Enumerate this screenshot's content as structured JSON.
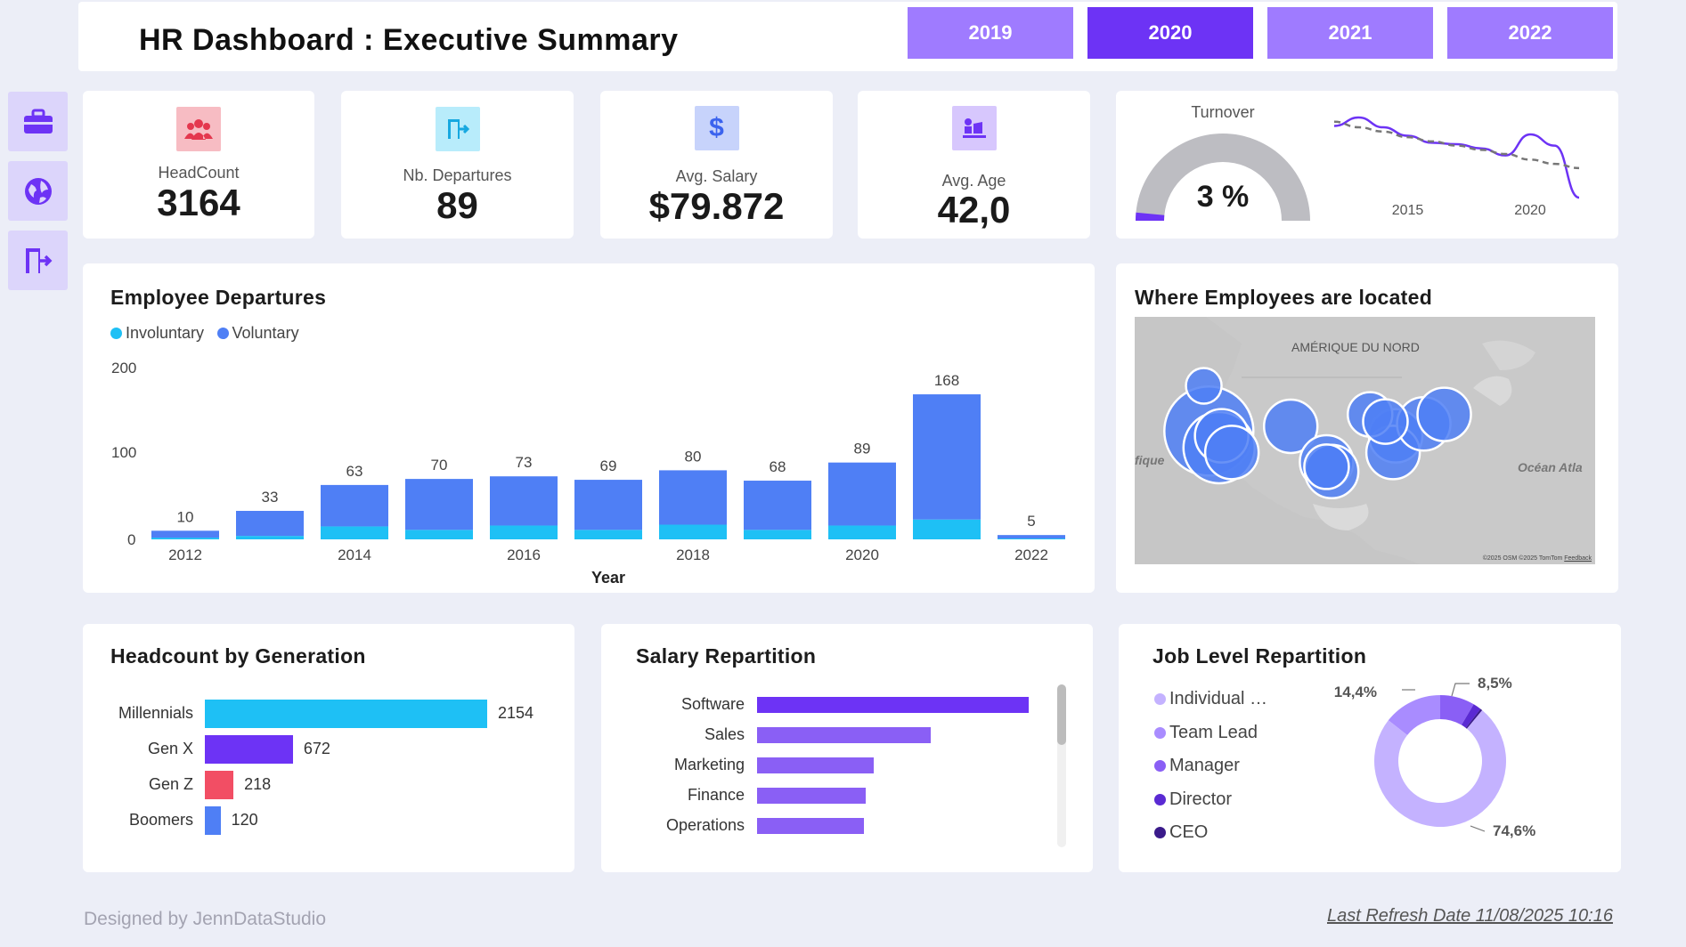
{
  "header": {
    "title": "HR Dashboard : Executive Summary",
    "years": [
      {
        "label": "2019",
        "color": "#9f7bff"
      },
      {
        "label": "2020",
        "color": "#6d33f5"
      },
      {
        "label": "2021",
        "color": "#9f7bff"
      },
      {
        "label": "2022",
        "color": "#9f7bff"
      }
    ],
    "selected_year": "2020"
  },
  "sidebar": {
    "items": [
      {
        "icon": "briefcase-icon"
      },
      {
        "icon": "globe-icon"
      },
      {
        "icon": "exit-door-icon"
      }
    ]
  },
  "kpis": {
    "headcount": {
      "label": "HeadCount",
      "value": "3164",
      "icon": "people-icon"
    },
    "departures": {
      "label": "Nb. Departures",
      "value": "89",
      "icon": "exit-door-icon"
    },
    "salary": {
      "label": "Avg. Salary",
      "value": "$79.872",
      "icon": "dollar-icon"
    },
    "age": {
      "label": "Avg. Age",
      "value": "42,0",
      "icon": "person-at-desk-icon"
    }
  },
  "turnover": {
    "label": "Turnover",
    "value_text": "3 %",
    "gauge_fraction": 0.03,
    "sparkline_ticks": [
      "2015",
      "2020"
    ]
  },
  "departures_chart": {
    "title": "Employee Departures",
    "legend": [
      {
        "name": "Involuntary",
        "color": "#1ec0f5"
      },
      {
        "name": "Voluntary",
        "color": "#4f7ff5"
      }
    ],
    "xlabel": "Year",
    "y_ticks": [
      "200",
      "100",
      "0"
    ]
  },
  "map": {
    "title": "Where Employees are located",
    "continent_label": "AMÉRIQUE DU NORD",
    "ocean_left": "fique",
    "ocean_right": "Océan Atla",
    "attribution": "©2025 OSM ©2025 TomTom",
    "feedback": "Feedback"
  },
  "generation": {
    "title": "Headcount by Generation"
  },
  "salary": {
    "title": "Salary Repartition"
  },
  "job_level": {
    "title": "Job Level Repartition",
    "legend": [
      {
        "name": "Individual …",
        "color": "#c4b2ff"
      },
      {
        "name": "Team Lead",
        "color": "#a98cff"
      },
      {
        "name": "Manager",
        "color": "#8a5ff5"
      },
      {
        "name": "Director",
        "color": "#5a2ad3"
      },
      {
        "name": "CEO",
        "color": "#3a1a8a"
      }
    ]
  },
  "chart_data": [
    {
      "type": "bar",
      "title": "Employee Departures",
      "xlabel": "Year",
      "ylabel": "",
      "ylim": [
        0,
        200
      ],
      "categories": [
        "2012",
        "2013",
        "2014",
        "2015",
        "2016",
        "2017",
        "2018",
        "2019",
        "2020",
        "2021",
        "2022"
      ],
      "x_tick_labels": [
        "2012",
        "",
        "2014",
        "",
        "2016",
        "",
        "2018",
        "",
        "2020",
        "",
        "2022"
      ],
      "totals": [
        10,
        33,
        63,
        70,
        73,
        69,
        80,
        68,
        89,
        168,
        5
      ],
      "series": [
        {
          "name": "Involuntary",
          "values": [
            2,
            4,
            15,
            11,
            16,
            11,
            17,
            11,
            16,
            23,
            1
          ]
        },
        {
          "name": "Voluntary",
          "values": [
            8,
            29,
            48,
            59,
            57,
            58,
            63,
            57,
            73,
            145,
            4
          ]
        }
      ],
      "stacked": true,
      "grid": false,
      "legend": "top-left"
    },
    {
      "type": "line",
      "title": "Turnover",
      "x_tick_labels": [
        "2015",
        "2020"
      ],
      "x": [
        2012,
        2013,
        2014,
        2015,
        2016,
        2017,
        2018,
        2019,
        2020,
        2021,
        2022
      ],
      "series": [
        {
          "name": "",
          "values": [
            3.6,
            4.2,
            3.5,
            2.9,
            2.4,
            2.3,
            2.0,
            1.5,
            3.0,
            2.2,
            -1.5
          ],
          "color": "#6d33f5"
        },
        {
          "name": "",
          "values": [
            3.9,
            3.5,
            3.2,
            2.8,
            2.5,
            2.2,
            1.9,
            1.6,
            1.2,
            0.9,
            0.6
          ],
          "color": "#777777",
          "dashed": true
        }
      ]
    },
    {
      "type": "bar",
      "orientation": "horizontal",
      "title": "Headcount by Generation",
      "categories": [
        "Millennials",
        "Gen X",
        "Gen Z",
        "Boomers"
      ],
      "values": [
        2154,
        672,
        218,
        120
      ],
      "colors": [
        "#1ec0f5",
        "#6d33f5",
        "#f24e64",
        "#4f7ff5"
      ]
    },
    {
      "type": "bar",
      "orientation": "horizontal",
      "title": "Salary Repartition",
      "categories": [
        "Software",
        "Sales",
        "Marketing",
        "Finance",
        "Operations"
      ],
      "values": [
        100,
        64,
        43,
        40,
        39.5
      ],
      "colors": [
        "#6d33f5",
        "#8a5ff5",
        "#8a5ff5",
        "#8a5ff5",
        "#8a5ff5"
      ]
    },
    {
      "type": "pie",
      "donut": true,
      "title": "Job Level Repartition",
      "categories": [
        "Individual …",
        "Team Lead",
        "Manager",
        "Director",
        "CEO"
      ],
      "values": [
        74.6,
        14.4,
        8.5,
        2.0,
        0.5
      ],
      "labels": [
        "74,6%",
        "14,4%",
        "8,5%",
        "",
        ""
      ],
      "colors": [
        "#c4b2ff",
        "#a98cff",
        "#8a5ff5",
        "#5a2ad3",
        "#3a1a8a"
      ]
    }
  ],
  "map_points": [
    {
      "lon": -121.5,
      "lat": 47.5,
      "size": 1
    },
    {
      "lon": -120.5,
      "lat": 38.0,
      "size": 4
    },
    {
      "lon": -118.0,
      "lat": 37.0,
      "size": 2
    },
    {
      "lon": -118.5,
      "lat": 34.5,
      "size": 3
    },
    {
      "lon": -116.0,
      "lat": 33.5,
      "size": 2
    },
    {
      "lon": -104.5,
      "lat": 39.0,
      "size": 2
    },
    {
      "lon": -97.5,
      "lat": 31.5,
      "size": 2
    },
    {
      "lon": -96.5,
      "lat": 29.5,
      "size": 2
    },
    {
      "lon": -97.5,
      "lat": 30.5,
      "size": 1.5
    },
    {
      "lon": -89.0,
      "lat": 41.5,
      "size": 1.5
    },
    {
      "lon": -86.0,
      "lat": 40.0,
      "size": 1.5
    },
    {
      "lon": -84.0,
      "lat": 37.0,
      "size": 2
    },
    {
      "lon": -84.5,
      "lat": 33.5,
      "size": 2
    },
    {
      "lon": -78.5,
      "lat": 39.5,
      "size": 2
    },
    {
      "lon": -74.5,
      "lat": 41.5,
      "size": 2
    }
  ],
  "footer": {
    "credit": "Designed by JennDataStudio",
    "refresh": "Last Refresh Date 11/08/2025 10:16"
  }
}
